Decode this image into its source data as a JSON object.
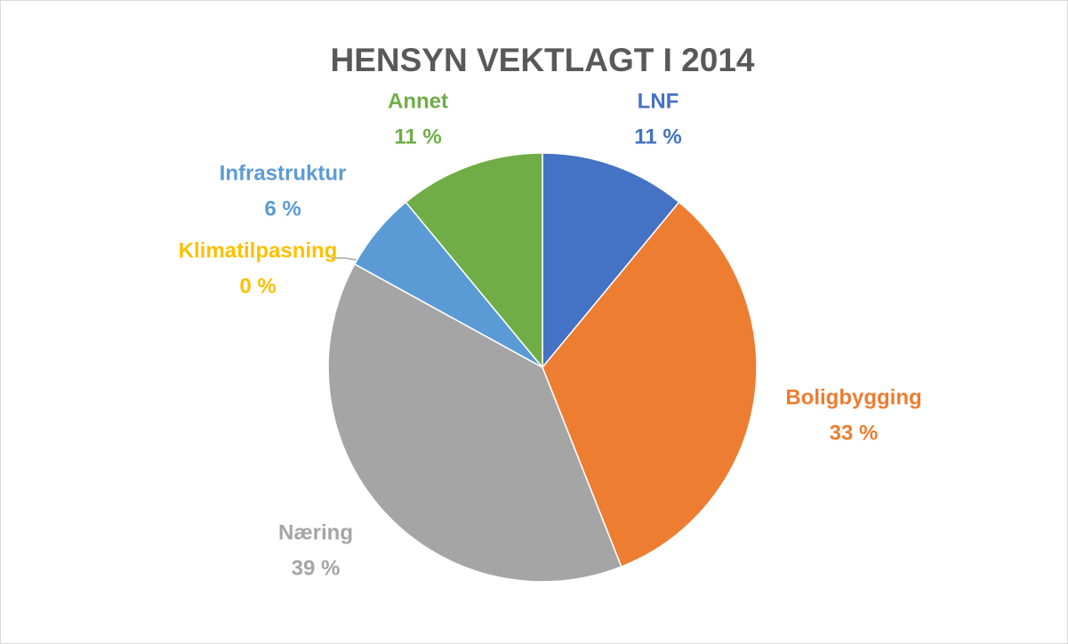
{
  "chart_data": {
    "type": "pie",
    "title": "HENSYN VEKTLAGT I 2014",
    "categories": [
      "LNF",
      "Boligbygging",
      "Næring",
      "Klimatilpasning",
      "Infrastruktur",
      "Annet"
    ],
    "values": [
      11,
      33,
      39,
      0,
      6,
      11
    ],
    "value_labels": [
      "11 %",
      "33 %",
      "39 %",
      "0 %",
      "6 %",
      "11 %"
    ],
    "colors": [
      "#4472c4",
      "#ed7d31",
      "#a5a5a5",
      "#ffc000",
      "#5b9bd5",
      "#70ad47"
    ]
  }
}
